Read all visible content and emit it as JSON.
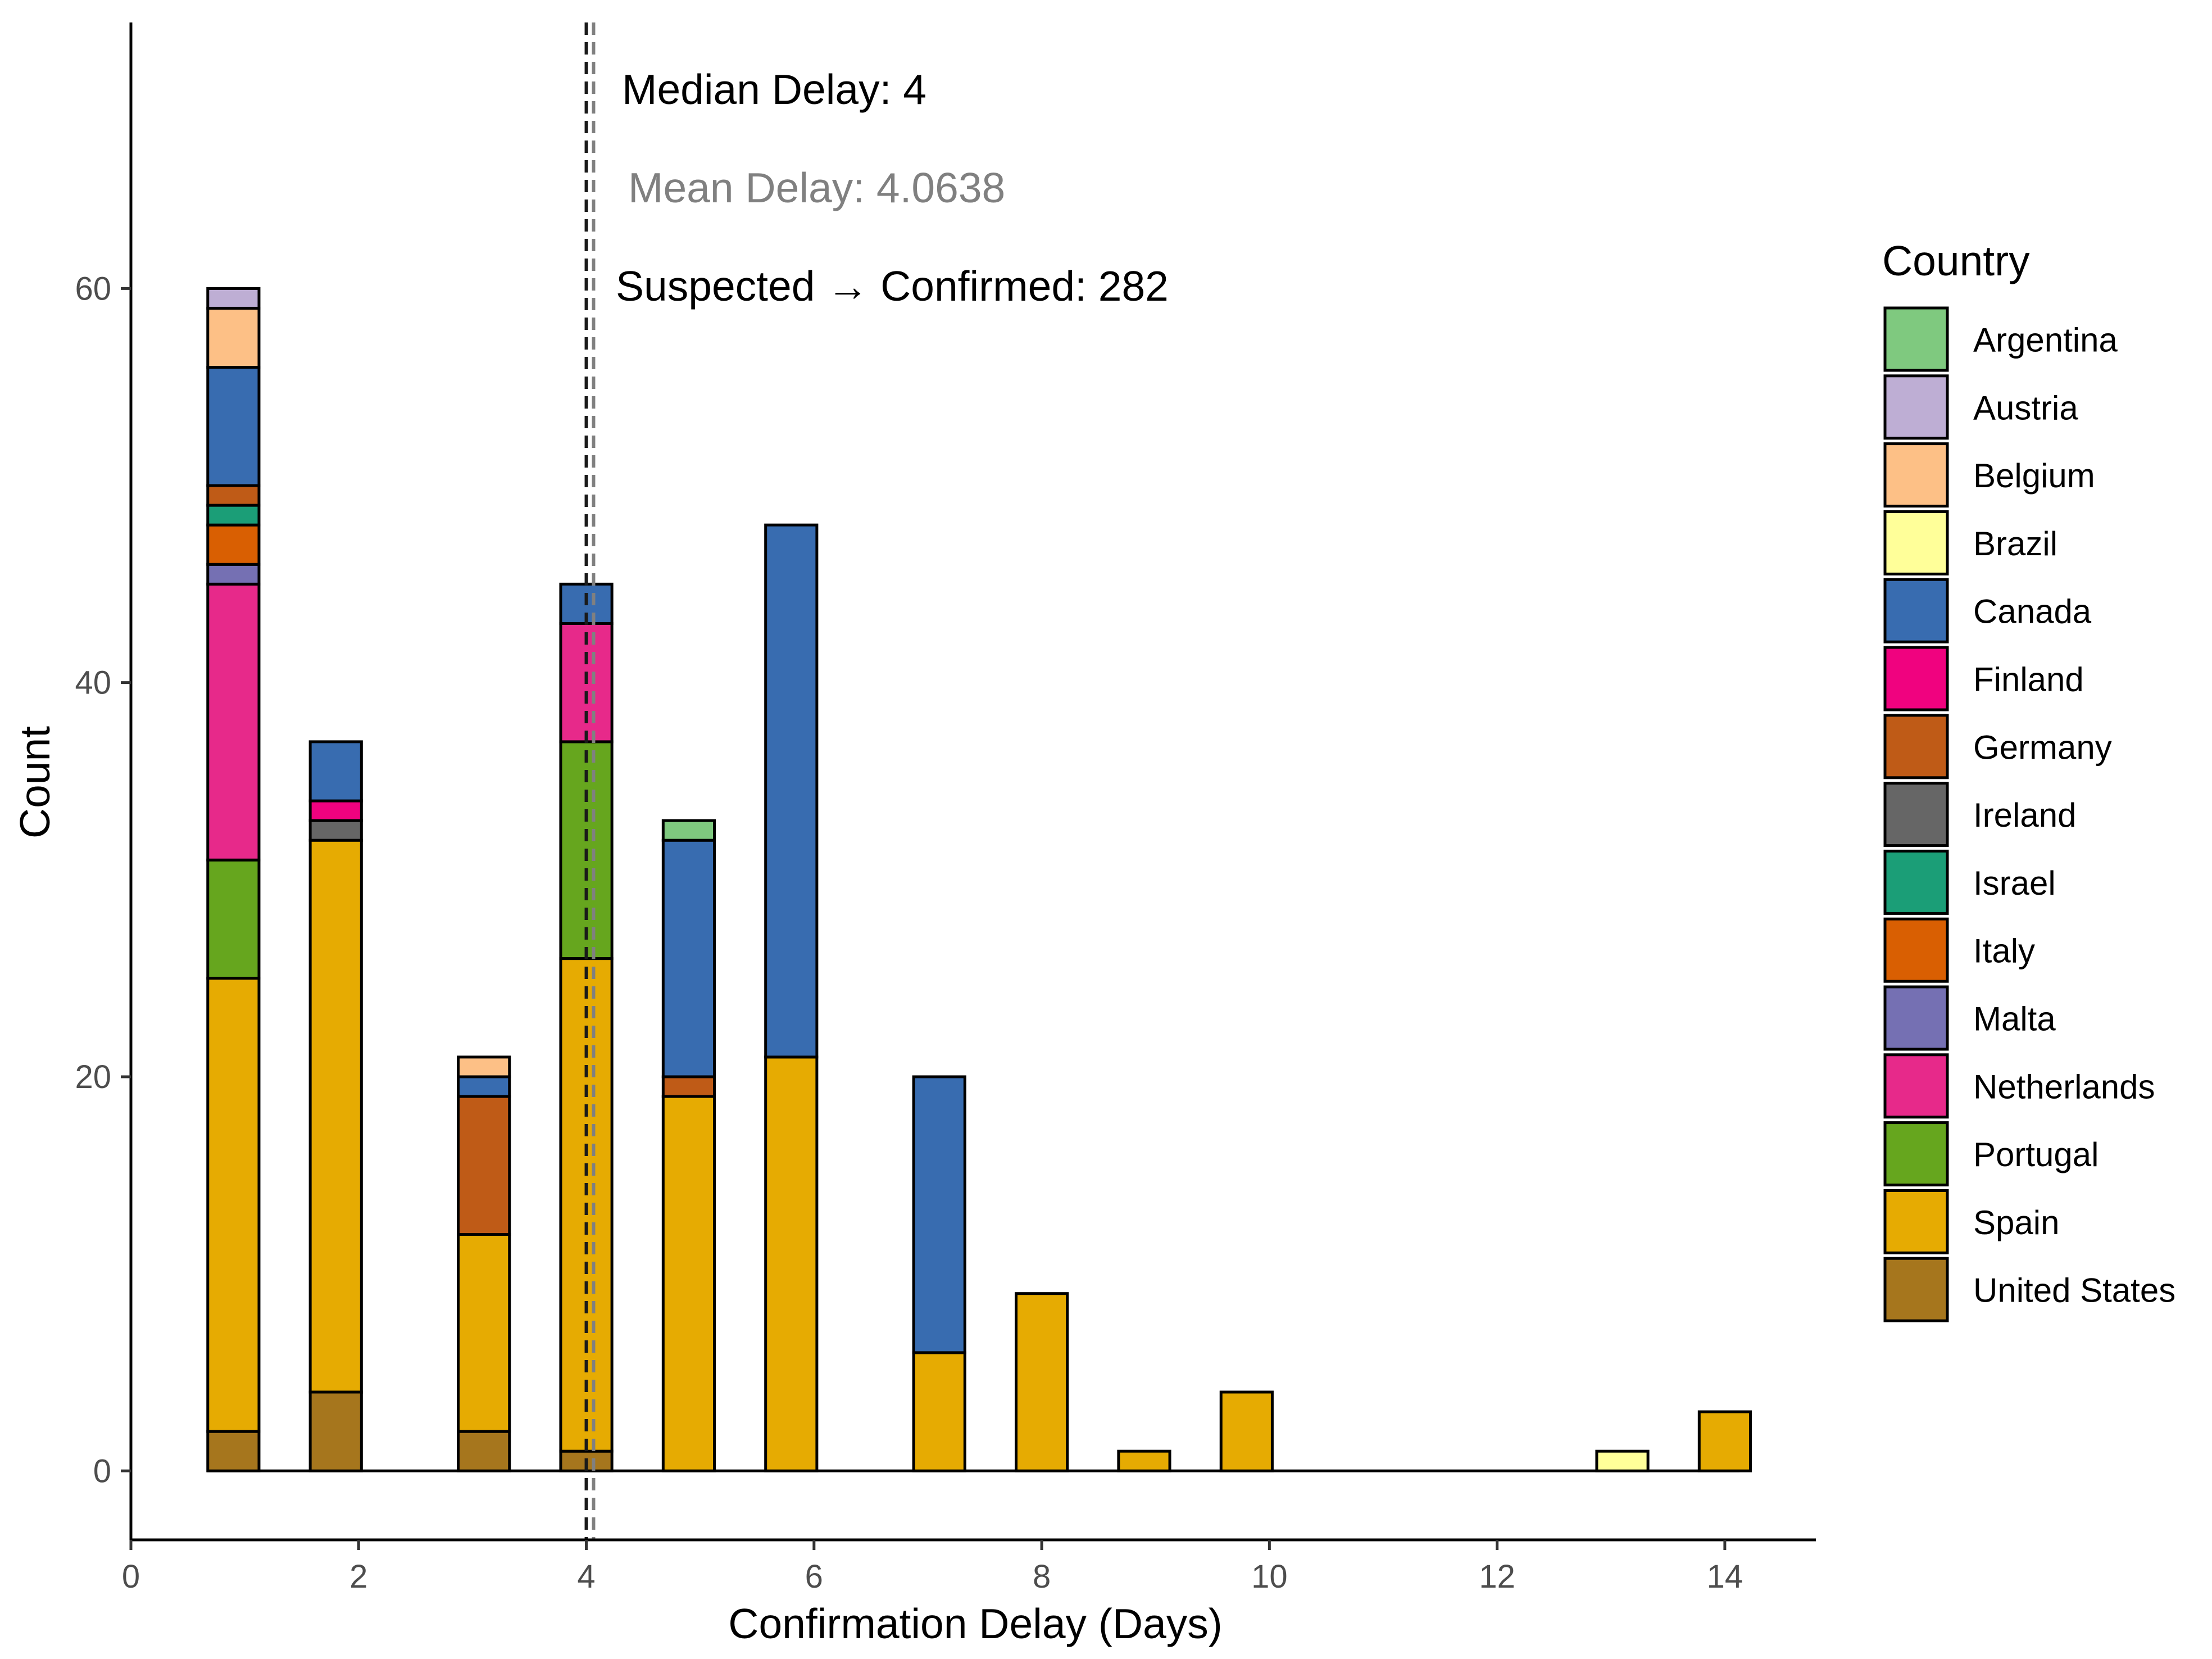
{
  "chart_data": {
    "type": "bar",
    "stacked": true,
    "xlabel": "Confirmation Delay (Days)",
    "ylabel": "Count",
    "xlim": [
      0,
      14.8
    ],
    "ylim": [
      -3.5,
      73.5
    ],
    "x_ticks": [
      0,
      2,
      4,
      6,
      8,
      10,
      12,
      14
    ],
    "y_ticks": [
      0,
      20,
      40,
      60
    ],
    "grid": false,
    "legend": {
      "title": "Country",
      "position": "right",
      "items": [
        {
          "name": "Argentina",
          "color": "#7FC97F"
        },
        {
          "name": "Austria",
          "color": "#BEAED4"
        },
        {
          "name": "Belgium",
          "color": "#FDC086"
        },
        {
          "name": "Brazil",
          "color": "#FFFF99"
        },
        {
          "name": "Canada",
          "color": "#386CB0"
        },
        {
          "name": "Finland",
          "color": "#F0027F"
        },
        {
          "name": "Germany",
          "color": "#BF5B17"
        },
        {
          "name": "Ireland",
          "color": "#666666"
        },
        {
          "name": "Israel",
          "color": "#1B9E77"
        },
        {
          "name": "Italy",
          "color": "#D95F02"
        },
        {
          "name": "Malta",
          "color": "#7570B3"
        },
        {
          "name": "Netherlands",
          "color": "#E7298A"
        },
        {
          "name": "Portugal",
          "color": "#66A61E"
        },
        {
          "name": "Spain",
          "color": "#E6AB02"
        },
        {
          "name": "United States",
          "color": "#A6761D"
        }
      ]
    },
    "stack_order_bottom_to_top": [
      "United States",
      "Spain",
      "Portugal",
      "Netherlands",
      "Malta",
      "Italy",
      "Israel",
      "Ireland",
      "Germany",
      "Finland",
      "Canada",
      "Brazil",
      "Belgium",
      "Austria",
      "Argentina"
    ],
    "bars": [
      {
        "x": 0.9,
        "segments": {
          "United States": 2,
          "Spain": 23,
          "Portugal": 6,
          "Netherlands": 14,
          "Malta": 1,
          "Italy": 2,
          "Israel": 1,
          "Germany": 1,
          "Canada": 6,
          "Belgium": 3,
          "Austria": 1
        }
      },
      {
        "x": 1.8,
        "segments": {
          "United States": 4,
          "Spain": 28,
          "Ireland": 1,
          "Finland": 1,
          "Canada": 3
        }
      },
      {
        "x": 3.1,
        "segments": {
          "United States": 2,
          "Spain": 10,
          "Germany": 7,
          "Canada": 1,
          "Belgium": 1
        }
      },
      {
        "x": 4.0,
        "segments": {
          "United States": 1,
          "Spain": 25,
          "Portugal": 11,
          "Netherlands": 6,
          "Canada": 2
        }
      },
      {
        "x": 4.9,
        "segments": {
          "Spain": 19,
          "Germany": 1,
          "Canada": 12,
          "Argentina": 1
        }
      },
      {
        "x": 5.8,
        "segments": {
          "Spain": 21,
          "Canada": 27
        }
      },
      {
        "x": 7.1,
        "segments": {
          "Spain": 6,
          "Canada": 14
        }
      },
      {
        "x": 8.0,
        "segments": {
          "Spain": 9
        }
      },
      {
        "x": 8.9,
        "segments": {
          "Spain": 1
        }
      },
      {
        "x": 9.8,
        "segments": {
          "Spain": 4
        }
      },
      {
        "x": 13.1,
        "segments": {
          "Brazil": 1
        }
      },
      {
        "x": 14.0,
        "segments": {
          "Spain": 3
        }
      }
    ],
    "baseline_range": [
      0.67,
      14.13
    ],
    "bin_width": 0.45,
    "reference_lines": [
      {
        "x": 4.0,
        "style": "dashed",
        "color": "#1a1a1a"
      },
      {
        "x": 4.0638,
        "style": "dashed",
        "color": "#808080"
      }
    ],
    "annotations": [
      {
        "text": "Median Delay: 4",
        "color": "#000000"
      },
      {
        "text": "Mean Delay: 4.0638",
        "color": "#808080"
      },
      {
        "text": "Suspected → Confirmed: 282",
        "color": "#000000"
      }
    ]
  }
}
